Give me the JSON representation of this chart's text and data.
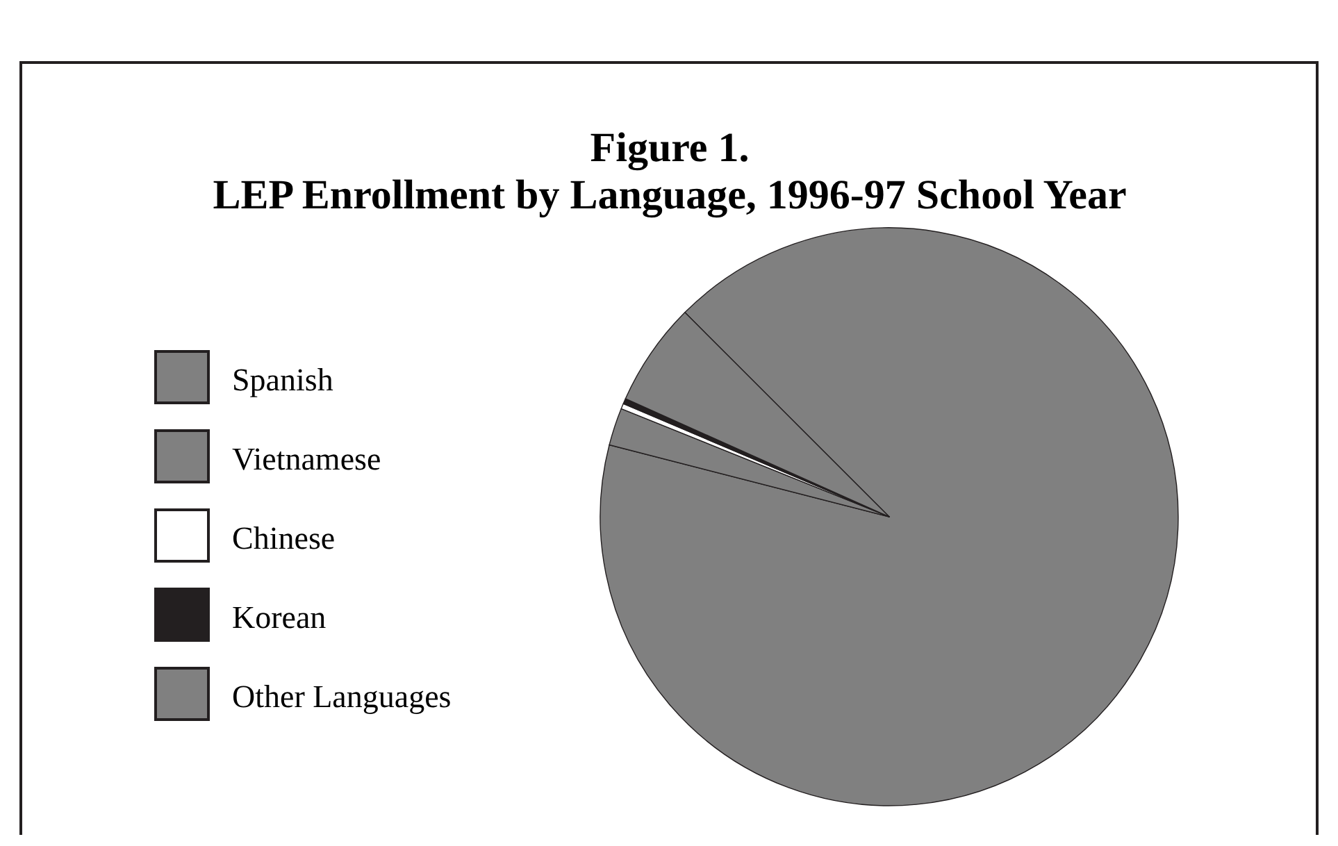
{
  "chart_data": {
    "type": "pie",
    "title": "Figure 1.\nLEP Enrollment by Language, 1996-97 School Year",
    "categories": [
      "Spanish",
      "Vietnamese",
      "Chinese",
      "Korean",
      "Other Languages"
    ],
    "values": [
      91.5,
      2.1,
      0.3,
      0.3,
      5.8
    ],
    "colors": [
      "#808080",
      "#808080",
      "#ffffff",
      "#231f20",
      "#808080"
    ],
    "legend": "left"
  }
}
